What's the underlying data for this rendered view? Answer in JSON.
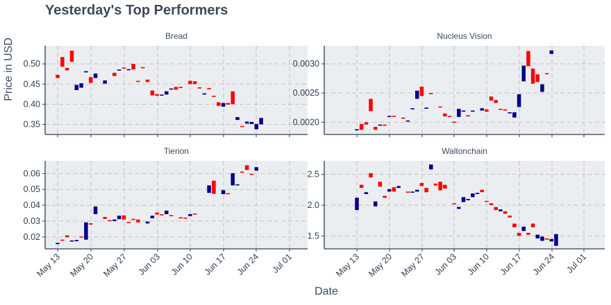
{
  "page": {
    "title": "Yesterday's Top Performers",
    "ylabel": "Price in USD",
    "xlabel": "Date"
  },
  "colors": {
    "panel_bg": "#ebeef0",
    "grid": "#c3c3c3",
    "up": "#00008b",
    "down": "#ff0000",
    "axis": "#2d3e50"
  },
  "chart_data": [
    {
      "type": "candlestick",
      "title": "Bread",
      "x_ticks": [
        "May 13",
        "May 20",
        "May 27",
        "Jun 03",
        "Jun 10",
        "Jun 17",
        "Jun 24",
        "Jul 01"
      ],
      "y_ticks": [
        "0.50",
        "0.45",
        "0.40",
        "0.35"
      ],
      "ylim": [
        0.325,
        0.545
      ],
      "candles": [
        {
          "date": "May 13",
          "open": 0.473,
          "close": 0.465
        },
        {
          "date": "May 14",
          "open": 0.517,
          "close": 0.493
        },
        {
          "date": "May 15",
          "open": 0.49,
          "close": 0.484
        },
        {
          "date": "May 16",
          "open": 0.533,
          "close": 0.505
        },
        {
          "date": "May 17",
          "open": 0.435,
          "close": 0.448
        },
        {
          "date": "May 18",
          "open": 0.441,
          "close": 0.452
        },
        {
          "date": "May 19",
          "open": 0.479,
          "close": 0.482
        },
        {
          "date": "May 20",
          "open": 0.467,
          "close": 0.453
        },
        {
          "date": "May 21",
          "open": 0.465,
          "close": 0.476
        },
        {
          "date": "May 23",
          "open": 0.451,
          "close": 0.459
        },
        {
          "date": "May 25",
          "open": 0.478,
          "close": 0.47
        },
        {
          "date": "May 26",
          "open": 0.484,
          "close": 0.486
        },
        {
          "date": "May 27",
          "open": 0.491,
          "close": 0.489
        },
        {
          "date": "May 28",
          "open": 0.485,
          "close": 0.487
        },
        {
          "date": "May 29",
          "open": 0.5,
          "close": 0.486
        },
        {
          "date": "May 30",
          "open": 0.458,
          "close": 0.456
        },
        {
          "date": "May 31",
          "open": 0.492,
          "close": 0.49
        },
        {
          "date": "Jun 01",
          "open": 0.461,
          "close": 0.455
        },
        {
          "date": "Jun 02",
          "open": 0.434,
          "close": 0.422
        },
        {
          "date": "Jun 03",
          "open": 0.425,
          "close": 0.421
        },
        {
          "date": "Jun 04",
          "open": 0.422,
          "close": 0.424
        },
        {
          "date": "Jun 05",
          "open": 0.424,
          "close": 0.432
        },
        {
          "date": "Jun 06",
          "open": 0.437,
          "close": 0.439
        },
        {
          "date": "Jun 07",
          "open": 0.443,
          "close": 0.436
        },
        {
          "date": "Jun 08",
          "open": 0.443,
          "close": 0.441
        },
        {
          "date": "Jun 10",
          "open": 0.458,
          "close": 0.45
        },
        {
          "date": "Jun 11",
          "open": 0.457,
          "close": 0.45
        },
        {
          "date": "Jun 12",
          "open": 0.442,
          "close": 0.439
        },
        {
          "date": "Jun 13",
          "open": 0.424,
          "close": 0.427
        },
        {
          "date": "Jun 14",
          "open": 0.44,
          "close": 0.437
        },
        {
          "date": "Jun 15",
          "open": 0.421,
          "close": 0.419
        },
        {
          "date": "Jun 16",
          "open": 0.405,
          "close": 0.396
        },
        {
          "date": "Jun 17",
          "open": 0.394,
          "close": 0.403
        },
        {
          "date": "Jun 18",
          "open": 0.403,
          "close": 0.399
        },
        {
          "date": "Jun 19",
          "open": 0.432,
          "close": 0.4
        },
        {
          "date": "Jun 20",
          "open": 0.361,
          "close": 0.368
        },
        {
          "date": "Jun 21",
          "open": 0.346,
          "close": 0.344
        },
        {
          "date": "Jun 22",
          "open": 0.352,
          "close": 0.357
        },
        {
          "date": "Jun 23",
          "open": 0.351,
          "close": 0.356
        },
        {
          "date": "Jun 24",
          "open": 0.338,
          "close": 0.351
        },
        {
          "date": "Jun 25",
          "open": 0.35,
          "close": 0.366
        }
      ]
    },
    {
      "type": "candlestick",
      "title": "Nucleus Vision",
      "x_ticks": [
        "May 13",
        "May 20",
        "May 27",
        "Jun 03",
        "Jun 10",
        "Jun 17",
        "Jun 24",
        "Jul 01"
      ],
      "y_ticks": [
        "0.0030",
        "0.0025",
        "0.0020"
      ],
      "ylim": [
        0.00179,
        0.00331
      ],
      "candles": [
        {
          "date": "May 13",
          "open": 0.00186,
          "close": 0.00188
        },
        {
          "date": "May 14",
          "open": 0.00197,
          "close": 0.00187
        },
        {
          "date": "May 15",
          "open": 0.002,
          "close": 0.00196
        },
        {
          "date": "May 16",
          "open": 0.0024,
          "close": 0.00219
        },
        {
          "date": "May 17",
          "open": 0.00192,
          "close": 0.00187
        },
        {
          "date": "May 18",
          "open": 0.00195,
          "close": 0.00196
        },
        {
          "date": "May 19",
          "open": 0.00196,
          "close": 0.00194
        },
        {
          "date": "May 20",
          "open": 0.0021,
          "close": 0.00211
        },
        {
          "date": "May 21",
          "open": 0.00211,
          "close": 0.0021
        },
        {
          "date": "May 23",
          "open": 0.00208,
          "close": 0.00206
        },
        {
          "date": "May 24",
          "open": 0.00201,
          "close": 0.00203
        },
        {
          "date": "May 25",
          "open": 0.00223,
          "close": 0.00224
        },
        {
          "date": "May 26",
          "open": 0.0024,
          "close": 0.00254
        },
        {
          "date": "May 27",
          "open": 0.00261,
          "close": 0.00245
        },
        {
          "date": "May 28",
          "open": 0.00223,
          "close": 0.00225
        },
        {
          "date": "May 29",
          "open": 0.0025,
          "close": 0.00248
        },
        {
          "date": "May 31",
          "open": 0.00227,
          "close": 0.00226
        },
        {
          "date": "Jun 01",
          "open": 0.00215,
          "close": 0.0021
        },
        {
          "date": "Jun 02",
          "open": 0.00211,
          "close": 0.0021
        },
        {
          "date": "Jun 03",
          "open": 0.00201,
          "close": 0.002
        },
        {
          "date": "Jun 04",
          "open": 0.00209,
          "close": 0.00223
        },
        {
          "date": "Jun 05",
          "open": 0.00219,
          "close": 0.0022
        },
        {
          "date": "Jun 06",
          "open": 0.00212,
          "close": 0.0021
        },
        {
          "date": "Jun 07",
          "open": 0.0022,
          "close": 0.0022
        },
        {
          "date": "Jun 09",
          "open": 0.0022,
          "close": 0.00224
        },
        {
          "date": "Jun 10",
          "open": 0.00222,
          "close": 0.00218
        },
        {
          "date": "Jun 11",
          "open": 0.00244,
          "close": 0.00237
        },
        {
          "date": "Jun 12",
          "open": 0.00238,
          "close": 0.00233
        },
        {
          "date": "Jun 13",
          "open": 0.00223,
          "close": 0.00222
        },
        {
          "date": "Jun 14",
          "open": 0.00222,
          "close": 0.0022
        },
        {
          "date": "Jun 15",
          "open": 0.00216,
          "close": 0.00217
        },
        {
          "date": "Jun 16",
          "open": 0.00208,
          "close": 0.00217
        },
        {
          "date": "Jun 17",
          "open": 0.00226,
          "close": 0.00248
        },
        {
          "date": "Jun 18",
          "open": 0.0027,
          "close": 0.00297
        },
        {
          "date": "Jun 19",
          "open": 0.00322,
          "close": 0.00296
        },
        {
          "date": "Jun 20",
          "open": 0.00292,
          "close": 0.00266
        },
        {
          "date": "Jun 21",
          "open": 0.00282,
          "close": 0.00269
        },
        {
          "date": "Jun 22",
          "open": 0.00252,
          "close": 0.00265
        },
        {
          "date": "Jun 23",
          "open": 0.00284,
          "close": 0.00283
        },
        {
          "date": "Jun 24",
          "open": 0.00317,
          "close": 0.00323
        }
      ]
    },
    {
      "type": "candlestick",
      "title": "Tierion",
      "x_ticks": [
        "May 13",
        "May 20",
        "May 27",
        "Jun 03",
        "Jun 10",
        "Jun 17",
        "Jun 24",
        "Jul 01"
      ],
      "y_ticks": [
        "0.06",
        "0.05",
        "0.04",
        "0.03",
        "0.02"
      ],
      "ylim": [
        0.0125,
        0.068
      ],
      "candles": [
        {
          "date": "May 13",
          "open": 0.0155,
          "close": 0.0163
        },
        {
          "date": "May 14",
          "open": 0.0183,
          "close": 0.0178
        },
        {
          "date": "May 15",
          "open": 0.021,
          "close": 0.0198
        },
        {
          "date": "May 16",
          "open": 0.0172,
          "close": 0.0178
        },
        {
          "date": "May 17",
          "open": 0.0173,
          "close": 0.0181
        },
        {
          "date": "May 18",
          "open": 0.0203,
          "close": 0.02
        },
        {
          "date": "May 19",
          "open": 0.0183,
          "close": 0.0292
        },
        {
          "date": "May 20",
          "open": 0.0286,
          "close": 0.0278
        },
        {
          "date": "May 21",
          "open": 0.0344,
          "close": 0.0392
        },
        {
          "date": "May 23",
          "open": 0.0326,
          "close": 0.0314
        },
        {
          "date": "May 24",
          "open": 0.0306,
          "close": 0.0302
        },
        {
          "date": "May 25",
          "open": 0.03,
          "close": 0.031
        },
        {
          "date": "May 26",
          "open": 0.0312,
          "close": 0.0334
        },
        {
          "date": "May 27",
          "open": 0.0336,
          "close": 0.031
        },
        {
          "date": "May 28",
          "open": 0.0294,
          "close": 0.029
        },
        {
          "date": "May 29",
          "open": 0.0314,
          "close": 0.0312
        },
        {
          "date": "May 30",
          "open": 0.031,
          "close": 0.0292
        },
        {
          "date": "Jun 01",
          "open": 0.0285,
          "close": 0.0297
        },
        {
          "date": "Jun 02",
          "open": 0.0318,
          "close": 0.0334
        },
        {
          "date": "Jun 03",
          "open": 0.0354,
          "close": 0.0341
        },
        {
          "date": "Jun 04",
          "open": 0.0343,
          "close": 0.0341
        },
        {
          "date": "Jun 05",
          "open": 0.0344,
          "close": 0.0366
        },
        {
          "date": "Jun 06",
          "open": 0.0338,
          "close": 0.0334
        },
        {
          "date": "Jun 08",
          "open": 0.0324,
          "close": 0.0322
        },
        {
          "date": "Jun 09",
          "open": 0.0322,
          "close": 0.032
        },
        {
          "date": "Jun 10",
          "open": 0.0332,
          "close": 0.0344
        },
        {
          "date": "Jun 11",
          "open": 0.0348,
          "close": 0.0342
        },
        {
          "date": "Jun 14",
          "open": 0.0478,
          "close": 0.0525
        },
        {
          "date": "Jun 15",
          "open": 0.0555,
          "close": 0.0472
        },
        {
          "date": "Jun 17",
          "open": 0.047,
          "close": 0.0495
        },
        {
          "date": "Jun 18",
          "open": 0.0476,
          "close": 0.0474
        },
        {
          "date": "Jun 19",
          "open": 0.0525,
          "close": 0.0602
        },
        {
          "date": "Jun 20",
          "open": 0.0528,
          "close": 0.0532
        },
        {
          "date": "Jun 21",
          "open": 0.0612,
          "close": 0.0608
        },
        {
          "date": "Jun 22",
          "open": 0.0652,
          "close": 0.0622
        },
        {
          "date": "Jun 23",
          "open": 0.0598,
          "close": 0.0592
        },
        {
          "date": "Jun 24",
          "open": 0.0618,
          "close": 0.064
        }
      ]
    },
    {
      "type": "candlestick",
      "title": "Waltonchain",
      "x_ticks": [
        "May 13",
        "May 20",
        "May 27",
        "Jun 03",
        "Jun 10",
        "Jun 17",
        "Jun 24",
        "Jul 01"
      ],
      "y_ticks": [
        "2.5",
        "2.0",
        "1.5"
      ],
      "ylim": [
        1.29,
        2.72
      ],
      "candles": [
        {
          "date": "May 13",
          "open": 1.92,
          "close": 2.12
        },
        {
          "date": "May 14",
          "open": 2.33,
          "close": 2.28
        },
        {
          "date": "May 15",
          "open": 2.18,
          "close": 2.21
        },
        {
          "date": "May 16",
          "open": 2.52,
          "close": 2.45
        },
        {
          "date": "May 17",
          "open": 1.98,
          "close": 2.06
        },
        {
          "date": "May 18",
          "open": 2.38,
          "close": 2.3
        },
        {
          "date": "May 19",
          "open": 2.15,
          "close": 2.12
        },
        {
          "date": "May 20",
          "open": 2.22,
          "close": 2.26
        },
        {
          "date": "May 21",
          "open": 2.29,
          "close": 2.22
        },
        {
          "date": "May 22",
          "open": 2.28,
          "close": 2.31
        },
        {
          "date": "May 24",
          "open": 2.22,
          "close": 2.21
        },
        {
          "date": "May 25",
          "open": 2.21,
          "close": 2.22
        },
        {
          "date": "May 26",
          "open": 2.22,
          "close": 2.25
        },
        {
          "date": "May 27",
          "open": 2.36,
          "close": 2.31
        },
        {
          "date": "May 28",
          "open": 2.28,
          "close": 2.21
        },
        {
          "date": "May 29",
          "open": 2.58,
          "close": 2.66
        },
        {
          "date": "May 30",
          "open": 2.35,
          "close": 2.32
        },
        {
          "date": "May 31",
          "open": 2.38,
          "close": 2.24
        },
        {
          "date": "Jun 01",
          "open": 2.33,
          "close": 2.27
        },
        {
          "date": "Jun 03",
          "open": 2.03,
          "close": 2.02
        },
        {
          "date": "Jun 04",
          "open": 1.94,
          "close": 1.97
        },
        {
          "date": "Jun 05",
          "open": 2.05,
          "close": 2.13
        },
        {
          "date": "Jun 06",
          "open": 2.08,
          "close": 2.1
        },
        {
          "date": "Jun 07",
          "open": 2.13,
          "close": 2.19
        },
        {
          "date": "Jun 08",
          "open": 2.18,
          "close": 2.2
        },
        {
          "date": "Jun 09",
          "open": 2.25,
          "close": 2.21
        },
        {
          "date": "Jun 10",
          "open": 2.07,
          "close": 2.06
        },
        {
          "date": "Jun 11",
          "open": 2.03,
          "close": 2.0
        },
        {
          "date": "Jun 12",
          "open": 1.97,
          "close": 1.92
        },
        {
          "date": "Jun 13",
          "open": 1.9,
          "close": 1.93
        },
        {
          "date": "Jun 14",
          "open": 1.9,
          "close": 1.86
        },
        {
          "date": "Jun 15",
          "open": 1.83,
          "close": 1.8
        },
        {
          "date": "Jun 16",
          "open": 1.7,
          "close": 1.64
        },
        {
          "date": "Jun 17",
          "open": 1.55,
          "close": 1.5
        },
        {
          "date": "Jun 18",
          "open": 1.58,
          "close": 1.65
        },
        {
          "date": "Jun 19",
          "open": 1.55,
          "close": 1.52
        },
        {
          "date": "Jun 20",
          "open": 1.7,
          "close": 1.64
        },
        {
          "date": "Jun 21",
          "open": 1.46,
          "close": 1.52
        },
        {
          "date": "Jun 22",
          "open": 1.42,
          "close": 1.49
        },
        {
          "date": "Jun 23",
          "open": 1.46,
          "close": 1.44
        },
        {
          "date": "Jun 24",
          "open": 1.41,
          "close": 1.45
        },
        {
          "date": "Jun 25",
          "open": 1.34,
          "close": 1.53
        }
      ]
    }
  ]
}
